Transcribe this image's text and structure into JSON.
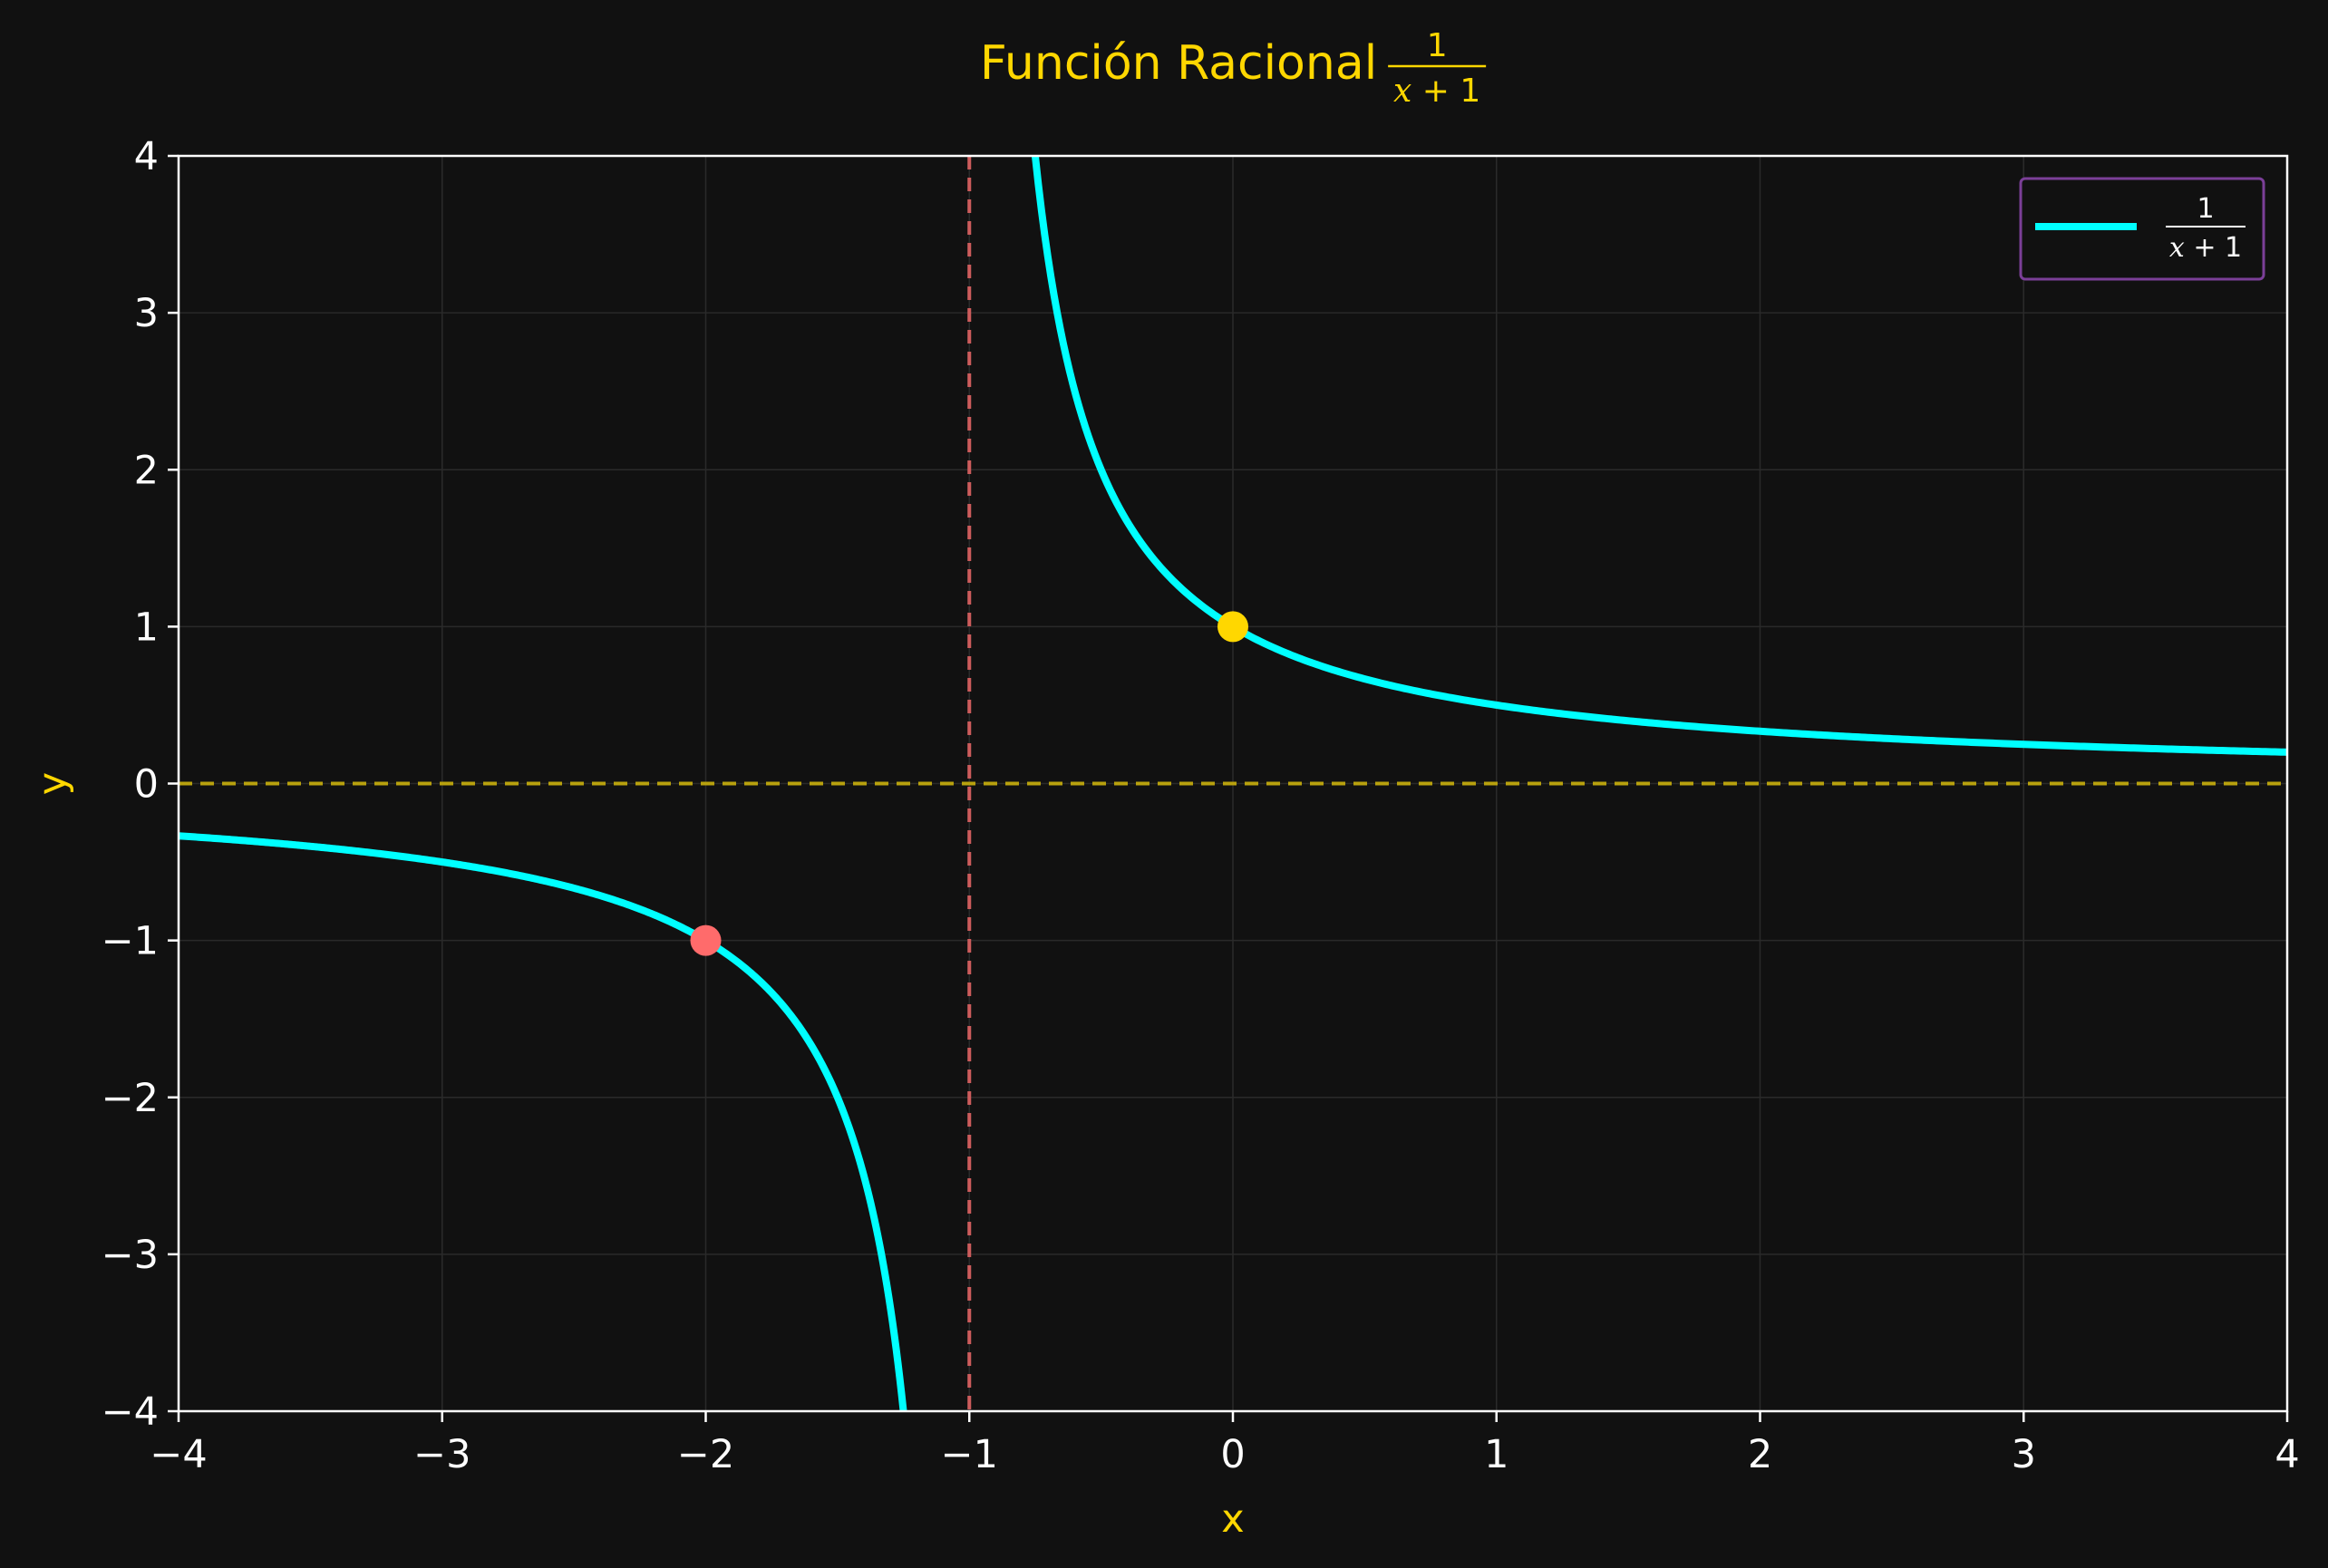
{
  "chart_data": {
    "type": "line",
    "title": "Función Racional",
    "title_fraction": {
      "numerator": "1",
      "denominator_var": "x",
      "denominator_rest": " + 1"
    },
    "xlabel": "x",
    "ylabel": "y",
    "xlim": [
      -4,
      4
    ],
    "ylim": [
      -4,
      4
    ],
    "x_ticks": [
      -4,
      -3,
      -2,
      -1,
      0,
      1,
      2,
      3,
      4
    ],
    "y_ticks": [
      -4,
      -3,
      -2,
      -1,
      0,
      1,
      2,
      3,
      4
    ],
    "x_tick_labels": [
      "−4",
      "−3",
      "−2",
      "−1",
      "0",
      "1",
      "2",
      "3",
      "4"
    ],
    "y_tick_labels": [
      "−4",
      "−3",
      "−2",
      "−1",
      "0",
      "1",
      "2",
      "3",
      "4"
    ],
    "grid": true,
    "legend_position": "top-right",
    "series": [
      {
        "name": "1/(x+1)",
        "name_fraction": {
          "numerator": "1",
          "denominator_var": "x",
          "denominator_rest": " + 1"
        },
        "function": "1/(x+1)",
        "color": "#00ffff",
        "branches": [
          {
            "x": [
              -4.0,
              -3.5,
              -3.0,
              -2.5,
              -2.0,
              -1.8,
              -1.6,
              -1.5,
              -1.4,
              -1.3,
              -1.25
            ],
            "y": [
              -0.333,
              -0.4,
              -0.5,
              -0.667,
              -1.0,
              -1.25,
              -1.667,
              -2.0,
              -2.5,
              -3.333,
              -4.0
            ]
          },
          {
            "x": [
              -0.75,
              -0.7,
              -0.6,
              -0.5,
              -0.4,
              -0.2,
              0.0,
              0.5,
              1.0,
              1.5,
              2.0,
              2.5,
              3.0,
              3.5,
              4.0
            ],
            "y": [
              4.0,
              3.333,
              2.5,
              2.0,
              1.667,
              1.25,
              1.0,
              0.667,
              0.5,
              0.4,
              0.333,
              0.286,
              0.25,
              0.222,
              0.2
            ]
          }
        ]
      }
    ],
    "asymptotes": [
      {
        "orientation": "vertical",
        "value": -1,
        "style": "dashed",
        "color": "#cd5c5c"
      },
      {
        "orientation": "horizontal",
        "value": 0,
        "style": "dashed",
        "color": "#b8a10e"
      }
    ],
    "points": [
      {
        "x": -2,
        "y": -1,
        "color": "#ff6b6b"
      },
      {
        "x": 0,
        "y": 1,
        "color": "#ffd700"
      }
    ]
  },
  "colors": {
    "background": "#111111",
    "title": "#ffd700",
    "axis_label": "#ffd700",
    "tick_label": "#ffffff",
    "spine": "#ffffff",
    "grid": "#2a2a2a",
    "legend_border": "#7b3f98",
    "curve": "#00ffff"
  }
}
